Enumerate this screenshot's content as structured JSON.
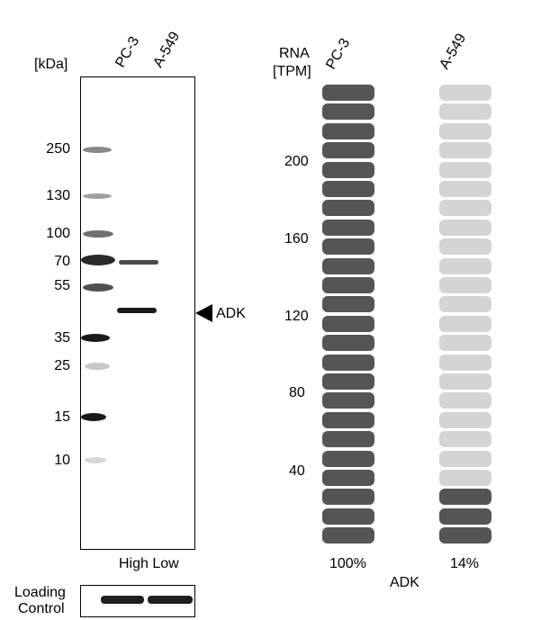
{
  "western_blot": {
    "unit_label": "[kDa]",
    "lane_labels": [
      "PC-3",
      "A-549"
    ],
    "markers": [
      "250",
      "130",
      "100",
      "70",
      "55",
      "35",
      "25",
      "15",
      "10"
    ],
    "target_label": "ADK",
    "expression_labels": "High Low",
    "loading_control_label": [
      "Loading",
      "Control"
    ]
  },
  "rna_chart": {
    "title_lines": [
      "RNA",
      "[TPM]"
    ],
    "columns": [
      {
        "label": "PC-3",
        "percent_label": "100%",
        "filled_segments": 24,
        "total_segments": 24
      },
      {
        "label": "A-549",
        "percent_label": "14%",
        "filled_segments": 3,
        "total_segments": 24
      }
    ],
    "y_ticks": [
      "200",
      "160",
      "120",
      "80",
      "40"
    ],
    "gene_label": "ADK",
    "colors": {
      "filled": "#555555",
      "empty": "#d4d4d4"
    }
  }
}
